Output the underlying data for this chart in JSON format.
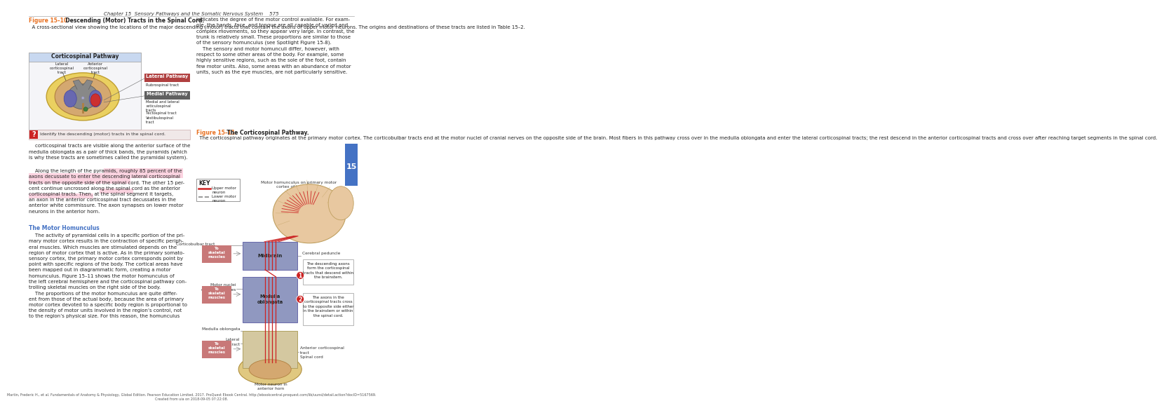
{
  "bg": "#ffffff",
  "page_header": "Chapter 15  Sensory Pathways and the Somatic Nervous System    575",
  "fig1_label": "Figure 15–10",
  "fig1_title": "  Descending (Motor) Tracts in the Spinal Cord.",
  "fig1_body": "  A cross-sectional view showing the locations of the major descending (motor) tracts that contain the axons of upper motor neurons. The origins and destinations of these tracts are listed in Table 15–2.",
  "fig2_label": "Figure 15–11",
  "fig2_title": "  The Corticospinal Pathway.",
  "fig2_body": "  The corticospinal pathway originates at the primary motor cortex. The corticobulbar tracts end at the motor nuclei of cranial nerves on the opposite side of the brain. Most fibers in this pathway cross over in the medulla oblongata and enter the lateral corticospinal tracts; the rest descend in the anterior corticospinal tracts and cross over after reaching target segments in the spinal cord.",
  "right_col_top": "indicates the degree of fine motor control available. For exam-\nple, the hands, face, and tongue are all capable of varied and\ncomplex movements, so they appear very large. In contrast, the\ntrunk is relatively small. These proportions are similar to those\nof the sensory homunculus (see Spotlight Figure 15-8).\n    The sensory and motor homunculi differ, however, with\nrespect to some other areas of the body. For example, some\nhighly sensitive regions, such as the sole of the foot, contain\nfew motor units. Also, some areas with an abundance of motor\nunits, such as the eye muscles, are not particularly sensitive.",
  "left_body1": "    corticospinal tracts are visible along the anterior surface of the\nmedulla oblongata as a pair of thick bands, the pyramids (which\nis why these tracts are sometimes called the pyramidal system).",
  "left_body2_pre": "    Along the length of the pyramids, roughly ",
  "left_body2_hl1": "85 percent of the\naxons decussate to enter the descending lateral corticospinal\ntracts on the opposite side of the spinal cord.",
  "left_body2_post": " The other 15 per-\ncent continue uncrossed along the spinal cord as the ",
  "left_body2_hl2": "anterior\ncorticospinal tracts",
  "left_body2_end": ". Then, at the spinal segment it targets,\nan axon in the anterior corticospinal tract decussates in the\nanterior white commissure. The axon synapses on lower motor\nneurons in the anterior horn.",
  "motor_hom_title": "The Motor Homunculus",
  "left_body3": "    The activity of pyramidal cells in a specific portion of the pri-\nmary motor cortex results in the contraction of specific periph-\neral muscles. Which muscles are stimulated depends on the\nregion of motor cortex that is active. As in the primary somato-\nsensory cortex, the primary motor cortex corresponds point by\npoint with specific regions of the body. The cortical areas have\nbeen mapped out in diagrammatic form, creating a motor\nhomunculus. Figure 15–11 shows the motor homunculus of\nthe left cerebral hemisphere and the corticospinal pathway con-\ntrolling skeletal muscles on the right side of the body.\n    The proportions of the motor homunculus are quite differ-\nent from those of the actual body, because the area of primary\nmotor cortex devoted to a specific body region is proportional to\nthe density of motor units involved in the region’s control, not\nto the region’s physical size. For this reason, the homunculus",
  "footer": "Martin, Frederic H., et al. Fundamentals of Anatomy & Physiology, Global Edition. Pearson Education Limited, 2017. ProQuest Ebook Central. http://ebookcentral.proquest.com/lib/uunsl/detail.action?docID=5167569.\nCreated from uia on 2018-09-05 07:22:08.",
  "key_title": "KEY",
  "key_upper": "Upper motor\nneuron",
  "key_lower": "Lower motor\nneuron",
  "lbl_homunculus": "Motor homunculus on primary motor\ncortex of left cerebral\nhemisphere",
  "lbl_corticobulbar": "Corticobulbar tract",
  "lbl_cerebral_ped": "Cerebral peduncle",
  "lbl_midbrain": "Midbrain",
  "lbl_motor_nuclei": "Motor nuclei\nof cranial nerves",
  "lbl_medulla": "Medulla oblongata",
  "lbl_lateral_tract": "Lateral\ncorticospinal tract",
  "lbl_ant_tract": "Anterior corticospinal\ntract",
  "lbl_spinal_cord": "Spinal cord",
  "lbl_motor_neuron": "Motor neuron in\nanterior horn",
  "box1": "The descending axons\nform the corticospinal\ntracts that descend within\nthe brainstem.",
  "box2": "The axons in the\ncorticospinal tracts cross\nto the opposite side either\nin the brainstem or within\nthe spinal cord.",
  "to_skel": "To\nskeletal\nmuscles",
  "spinal_header": "Corticospinal Pathway",
  "lbl_lateral_l": "Lateral\ncorticospinal\ntract",
  "lbl_anterior_r": "Anterior\ncorticospinal\ntract",
  "lbl_lat_pathway": "Lateral Pathway",
  "lbl_rubrospinal": "Rubrospinal tract",
  "lbl_med_pathway": "Medial Pathway",
  "lbl_reticulospinal": "Medial and lateral\nreticulospinal\ntracts",
  "lbl_tectospinal": "Tectospinal tract",
  "lbl_vestibulospinal": "Vestibulospinal\ntract",
  "question": "Identify the descending (motor) tracts in the spinal cord.",
  "c_red": "#cc2222",
  "c_orange": "#e87020",
  "c_blue_tab": "#4472c4",
  "c_blue_hdr": "#4472c4",
  "c_gray": "#888888",
  "c_pink_box": "#e8a0a0",
  "c_highlight": "#f8b4c8",
  "c_skin": "#e8c8a0",
  "c_brain_tan": "#d4a870",
  "c_gray_matter": "#888888",
  "c_spinal_blue": "#9098c0",
  "c_yellow_roots": "#e8c840",
  "c_purple_tract": "#6868b0",
  "c_red_dot": "#cc2222",
  "c_green_dot": "#408040",
  "c_lateral_pw": "#b04040",
  "c_medial_pw": "#606060",
  "c_to_skel": "#c87878"
}
